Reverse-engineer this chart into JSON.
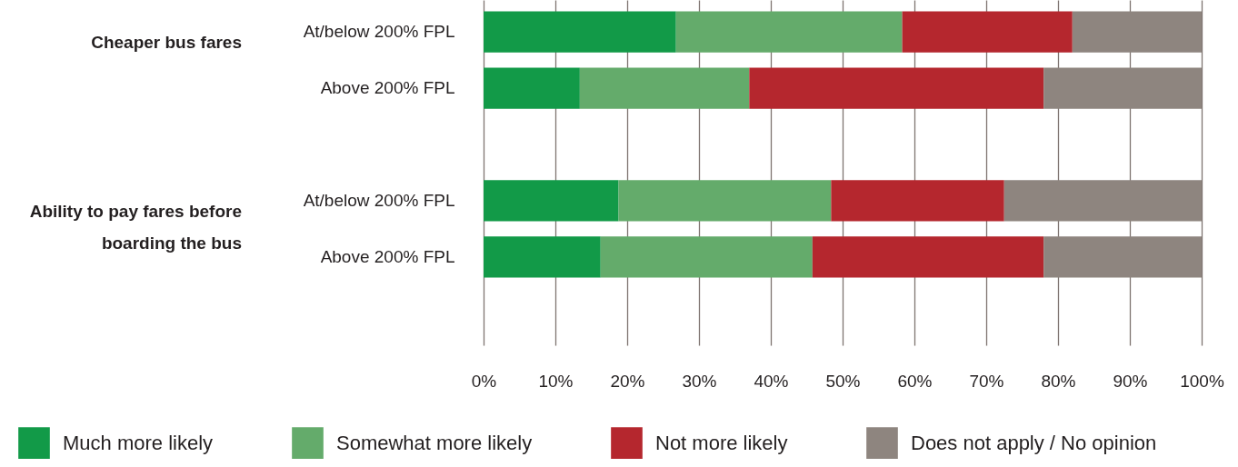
{
  "chart_data": {
    "type": "bar",
    "orientation": "horizontal",
    "stacked": true,
    "categories": [
      "At/below 200% FPL",
      "Above 200% FPL",
      null,
      "At/below 200% FPL",
      "Above 200% FPL",
      null
    ],
    "series": [
      {
        "name": "Much more likely",
        "color": "#129a48",
        "values": [
          26.8,
          13.4,
          null,
          18.8,
          16.3,
          null
        ]
      },
      {
        "name": "Somewhat more likely",
        "color": "#64ab6b",
        "values": [
          31.5,
          23.6,
          null,
          29.6,
          29.5,
          null
        ]
      },
      {
        "name": "Not more likely",
        "color": "#b5272e",
        "values": [
          23.7,
          41.0,
          null,
          24.1,
          32.2,
          null
        ]
      },
      {
        "name": "Does not apply / No opinion",
        "color": "#8e857f",
        "values": [
          18.0,
          22.0,
          null,
          27.5,
          22.0,
          null
        ]
      }
    ],
    "xlim": [
      0,
      100
    ],
    "xticks": [
      {
        "value": 0,
        "label": "0%"
      },
      {
        "value": 10,
        "label": "10%"
      },
      {
        "value": 20,
        "label": "20%"
      },
      {
        "value": 30,
        "label": "30%"
      },
      {
        "value": 40,
        "label": "40%"
      },
      {
        "value": 50,
        "label": "50%"
      },
      {
        "value": 60,
        "label": "60%"
      },
      {
        "value": 70,
        "label": "70%"
      },
      {
        "value": 80,
        "label": "80%"
      },
      {
        "value": 90,
        "label": "90%"
      },
      {
        "value": 100,
        "label": "100%"
      }
    ],
    "annotations": [
      "Cheaper bus fares",
      "Ability to pay fares before boarding the bus"
    ],
    "grid": "x",
    "legend": "bottom"
  }
}
